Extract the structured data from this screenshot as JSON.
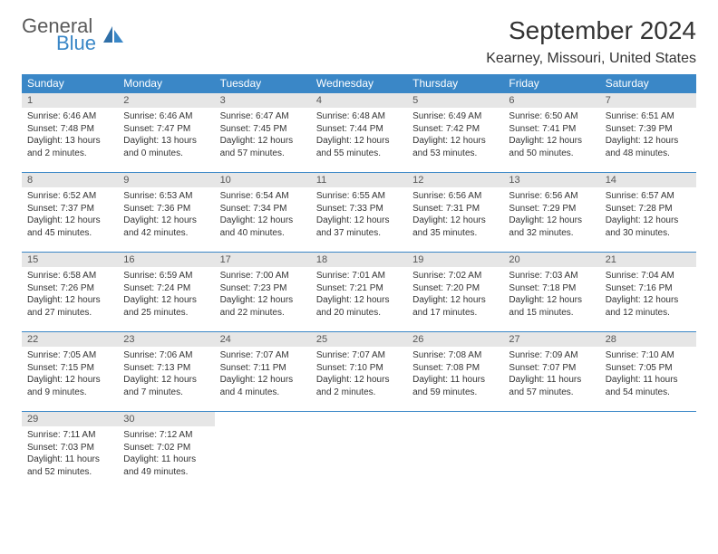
{
  "logo": {
    "main": "General",
    "sub": "Blue"
  },
  "title": "September 2024",
  "location": "Kearney, Missouri, United States",
  "headers": [
    "Sunday",
    "Monday",
    "Tuesday",
    "Wednesday",
    "Thursday",
    "Friday",
    "Saturday"
  ],
  "colors": {
    "accent": "#3a87c7",
    "header_bg": "#3a87c7",
    "daynum_bg": "#e6e6e6"
  },
  "days": [
    {
      "n": "1",
      "sr": "Sunrise: 6:46 AM",
      "ss": "Sunset: 7:48 PM",
      "d1": "Daylight: 13 hours",
      "d2": "and 2 minutes."
    },
    {
      "n": "2",
      "sr": "Sunrise: 6:46 AM",
      "ss": "Sunset: 7:47 PM",
      "d1": "Daylight: 13 hours",
      "d2": "and 0 minutes."
    },
    {
      "n": "3",
      "sr": "Sunrise: 6:47 AM",
      "ss": "Sunset: 7:45 PM",
      "d1": "Daylight: 12 hours",
      "d2": "and 57 minutes."
    },
    {
      "n": "4",
      "sr": "Sunrise: 6:48 AM",
      "ss": "Sunset: 7:44 PM",
      "d1": "Daylight: 12 hours",
      "d2": "and 55 minutes."
    },
    {
      "n": "5",
      "sr": "Sunrise: 6:49 AM",
      "ss": "Sunset: 7:42 PM",
      "d1": "Daylight: 12 hours",
      "d2": "and 53 minutes."
    },
    {
      "n": "6",
      "sr": "Sunrise: 6:50 AM",
      "ss": "Sunset: 7:41 PM",
      "d1": "Daylight: 12 hours",
      "d2": "and 50 minutes."
    },
    {
      "n": "7",
      "sr": "Sunrise: 6:51 AM",
      "ss": "Sunset: 7:39 PM",
      "d1": "Daylight: 12 hours",
      "d2": "and 48 minutes."
    },
    {
      "n": "8",
      "sr": "Sunrise: 6:52 AM",
      "ss": "Sunset: 7:37 PM",
      "d1": "Daylight: 12 hours",
      "d2": "and 45 minutes."
    },
    {
      "n": "9",
      "sr": "Sunrise: 6:53 AM",
      "ss": "Sunset: 7:36 PM",
      "d1": "Daylight: 12 hours",
      "d2": "and 42 minutes."
    },
    {
      "n": "10",
      "sr": "Sunrise: 6:54 AM",
      "ss": "Sunset: 7:34 PM",
      "d1": "Daylight: 12 hours",
      "d2": "and 40 minutes."
    },
    {
      "n": "11",
      "sr": "Sunrise: 6:55 AM",
      "ss": "Sunset: 7:33 PM",
      "d1": "Daylight: 12 hours",
      "d2": "and 37 minutes."
    },
    {
      "n": "12",
      "sr": "Sunrise: 6:56 AM",
      "ss": "Sunset: 7:31 PM",
      "d1": "Daylight: 12 hours",
      "d2": "and 35 minutes."
    },
    {
      "n": "13",
      "sr": "Sunrise: 6:56 AM",
      "ss": "Sunset: 7:29 PM",
      "d1": "Daylight: 12 hours",
      "d2": "and 32 minutes."
    },
    {
      "n": "14",
      "sr": "Sunrise: 6:57 AM",
      "ss": "Sunset: 7:28 PM",
      "d1": "Daylight: 12 hours",
      "d2": "and 30 minutes."
    },
    {
      "n": "15",
      "sr": "Sunrise: 6:58 AM",
      "ss": "Sunset: 7:26 PM",
      "d1": "Daylight: 12 hours",
      "d2": "and 27 minutes."
    },
    {
      "n": "16",
      "sr": "Sunrise: 6:59 AM",
      "ss": "Sunset: 7:24 PM",
      "d1": "Daylight: 12 hours",
      "d2": "and 25 minutes."
    },
    {
      "n": "17",
      "sr": "Sunrise: 7:00 AM",
      "ss": "Sunset: 7:23 PM",
      "d1": "Daylight: 12 hours",
      "d2": "and 22 minutes."
    },
    {
      "n": "18",
      "sr": "Sunrise: 7:01 AM",
      "ss": "Sunset: 7:21 PM",
      "d1": "Daylight: 12 hours",
      "d2": "and 20 minutes."
    },
    {
      "n": "19",
      "sr": "Sunrise: 7:02 AM",
      "ss": "Sunset: 7:20 PM",
      "d1": "Daylight: 12 hours",
      "d2": "and 17 minutes."
    },
    {
      "n": "20",
      "sr": "Sunrise: 7:03 AM",
      "ss": "Sunset: 7:18 PM",
      "d1": "Daylight: 12 hours",
      "d2": "and 15 minutes."
    },
    {
      "n": "21",
      "sr": "Sunrise: 7:04 AM",
      "ss": "Sunset: 7:16 PM",
      "d1": "Daylight: 12 hours",
      "d2": "and 12 minutes."
    },
    {
      "n": "22",
      "sr": "Sunrise: 7:05 AM",
      "ss": "Sunset: 7:15 PM",
      "d1": "Daylight: 12 hours",
      "d2": "and 9 minutes."
    },
    {
      "n": "23",
      "sr": "Sunrise: 7:06 AM",
      "ss": "Sunset: 7:13 PM",
      "d1": "Daylight: 12 hours",
      "d2": "and 7 minutes."
    },
    {
      "n": "24",
      "sr": "Sunrise: 7:07 AM",
      "ss": "Sunset: 7:11 PM",
      "d1": "Daylight: 12 hours",
      "d2": "and 4 minutes."
    },
    {
      "n": "25",
      "sr": "Sunrise: 7:07 AM",
      "ss": "Sunset: 7:10 PM",
      "d1": "Daylight: 12 hours",
      "d2": "and 2 minutes."
    },
    {
      "n": "26",
      "sr": "Sunrise: 7:08 AM",
      "ss": "Sunset: 7:08 PM",
      "d1": "Daylight: 11 hours",
      "d2": "and 59 minutes."
    },
    {
      "n": "27",
      "sr": "Sunrise: 7:09 AM",
      "ss": "Sunset: 7:07 PM",
      "d1": "Daylight: 11 hours",
      "d2": "and 57 minutes."
    },
    {
      "n": "28",
      "sr": "Sunrise: 7:10 AM",
      "ss": "Sunset: 7:05 PM",
      "d1": "Daylight: 11 hours",
      "d2": "and 54 minutes."
    },
    {
      "n": "29",
      "sr": "Sunrise: 7:11 AM",
      "ss": "Sunset: 7:03 PM",
      "d1": "Daylight: 11 hours",
      "d2": "and 52 minutes."
    },
    {
      "n": "30",
      "sr": "Sunrise: 7:12 AM",
      "ss": "Sunset: 7:02 PM",
      "d1": "Daylight: 11 hours",
      "d2": "and 49 minutes."
    }
  ]
}
